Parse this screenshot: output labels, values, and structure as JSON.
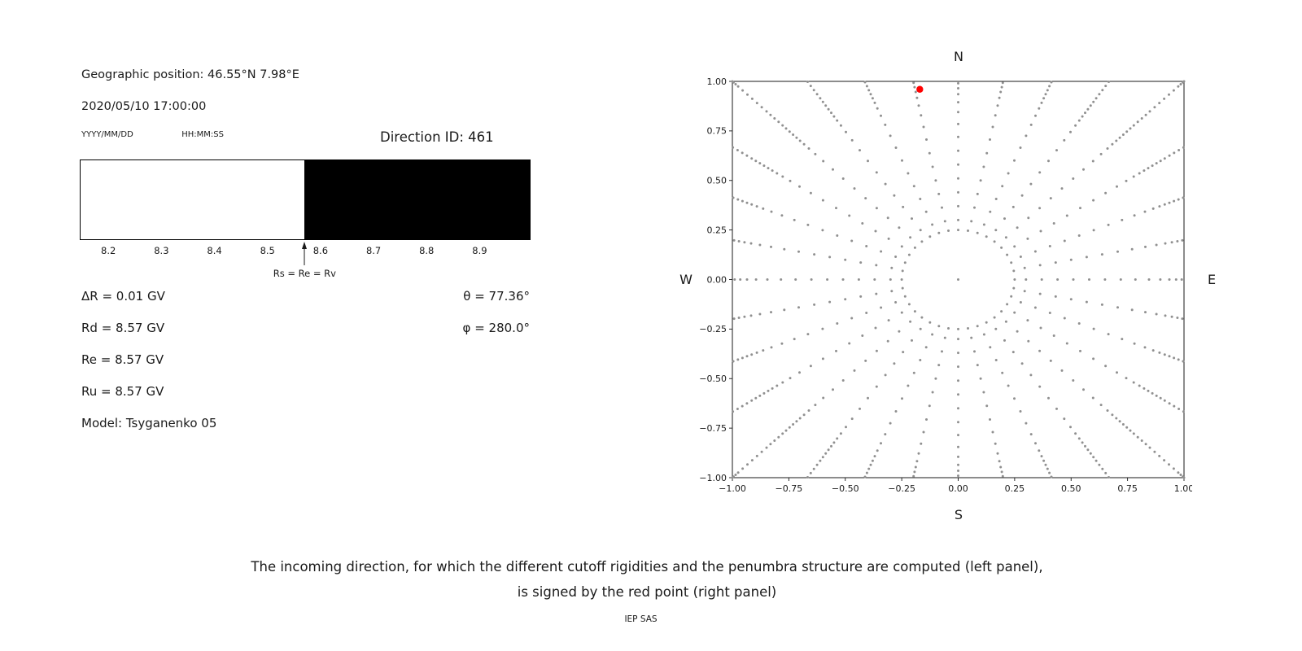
{
  "header": {
    "geo_position": "Geographic position: 46.55°N 7.98°E",
    "datetime": "2020/05/10 17:00:00",
    "date_format": "YYYY/MM/DD",
    "time_format": "HH:MM:SS",
    "direction_id": "Direction ID: 461"
  },
  "left_values": {
    "delta_r": "ΔR = 0.01 GV",
    "rd": "Rd = 8.57 GV",
    "re": "Re = 8.57 GV",
    "ru": "Ru = 8.57 GV",
    "model": "Model: Tsyganenko 05",
    "theta": "θ = 77.36°",
    "phi": "φ = 280.0°"
  },
  "caption": {
    "line1": "The incoming direction, for which the different cutoff rigidities and the penumbra structure are computed (left panel),",
    "line2": "is signed by the red point (right panel)",
    "credit": "IEP SAS"
  },
  "chart_data": [
    {
      "type": "bar",
      "description": "Penumbra structure: allowed (white) vs forbidden (black) rigidity ranges",
      "x_min": 8.146,
      "x_max": 8.996,
      "boundary_rs": 8.57,
      "xticks": [
        8.2,
        8.3,
        8.4,
        8.5,
        8.6,
        8.7,
        8.8,
        8.9
      ],
      "allowed_region": [
        8.146,
        8.57
      ],
      "forbidden_region": [
        8.57,
        8.996
      ],
      "allowed_color": "#ffffff",
      "forbidden_color": "#000000",
      "arrow_label": "Rs = Re = Rv"
    },
    {
      "type": "scatter",
      "description": "Incoming directions map; selected direction marked by red point",
      "xlim": [
        -1,
        1
      ],
      "ylim": [
        -1,
        1
      ],
      "xticks": [
        -1.0,
        -0.75,
        -0.5,
        -0.25,
        0.0,
        0.25,
        0.5,
        0.75,
        1.0
      ],
      "yticks": [
        -1.0,
        -0.75,
        -0.5,
        -0.25,
        0.0,
        0.25,
        0.5,
        0.75,
        1.0
      ],
      "dot_color": "#909090",
      "spokes": {
        "count": 32,
        "azimuth_start_deg": 0,
        "azimuth_step_deg": 11.25,
        "curvature_deg_per_unit_r": 0,
        "radii": [
          0.3,
          0.37,
          0.44,
          0.51,
          0.58,
          0.65,
          0.72,
          0.785,
          0.845,
          0.895,
          0.935,
          0.965,
          0.99,
          1.012,
          1.034,
          1.056,
          1.078,
          1.1,
          1.125,
          1.15,
          1.175,
          1.2,
          1.23,
          1.26,
          1.29,
          1.32,
          1.35,
          1.378,
          1.394,
          1.407,
          1.414
        ]
      },
      "inner_ring": {
        "radius": 0.25,
        "count": 36
      },
      "center_point": [
        0,
        0
      ],
      "red_point": {
        "x": -0.17,
        "y": 0.96,
        "color": "#ff0000"
      },
      "compass_labels": {
        "top": "N",
        "bottom": "S",
        "left": "W",
        "right": "E"
      }
    }
  ]
}
